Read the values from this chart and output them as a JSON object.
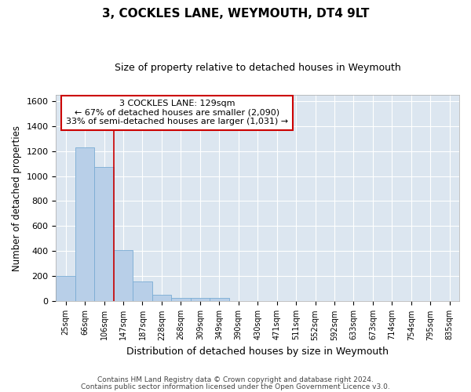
{
  "title": "3, COCKLES LANE, WEYMOUTH, DT4 9LT",
  "subtitle": "Size of property relative to detached houses in Weymouth",
  "xlabel": "Distribution of detached houses by size in Weymouth",
  "ylabel": "Number of detached properties",
  "footer_line1": "Contains HM Land Registry data © Crown copyright and database right 2024.",
  "footer_line2": "Contains public sector information licensed under the Open Government Licence v3.0.",
  "bar_color": "#b8cfe8",
  "bar_edge_color": "#7aacd4",
  "background_color": "#dce6f0",
  "grid_color": "#ffffff",
  "annotation_box_text_line1": "3 COCKLES LANE: 129sqm",
  "annotation_box_text_line2": "← 67% of detached houses are smaller (2,090)",
  "annotation_box_text_line3": "33% of semi-detached houses are larger (1,031) →",
  "red_line_color": "#cc0000",
  "annotation_box_edge_color": "#cc0000",
  "categories": [
    "25sqm",
    "66sqm",
    "106sqm",
    "147sqm",
    "187sqm",
    "228sqm",
    "268sqm",
    "309sqm",
    "349sqm",
    "390sqm",
    "430sqm",
    "471sqm",
    "511sqm",
    "552sqm",
    "592sqm",
    "633sqm",
    "673sqm",
    "714sqm",
    "754sqm",
    "795sqm",
    "835sqm"
  ],
  "bar_heights": [
    205,
    1230,
    1075,
    410,
    160,
    55,
    30,
    25,
    25,
    0,
    0,
    0,
    0,
    0,
    0,
    0,
    0,
    0,
    0,
    0,
    0
  ],
  "red_line_x": 2.5,
  "ylim": [
    0,
    1650
  ],
  "yticks": [
    0,
    200,
    400,
    600,
    800,
    1000,
    1200,
    1400,
    1600
  ]
}
